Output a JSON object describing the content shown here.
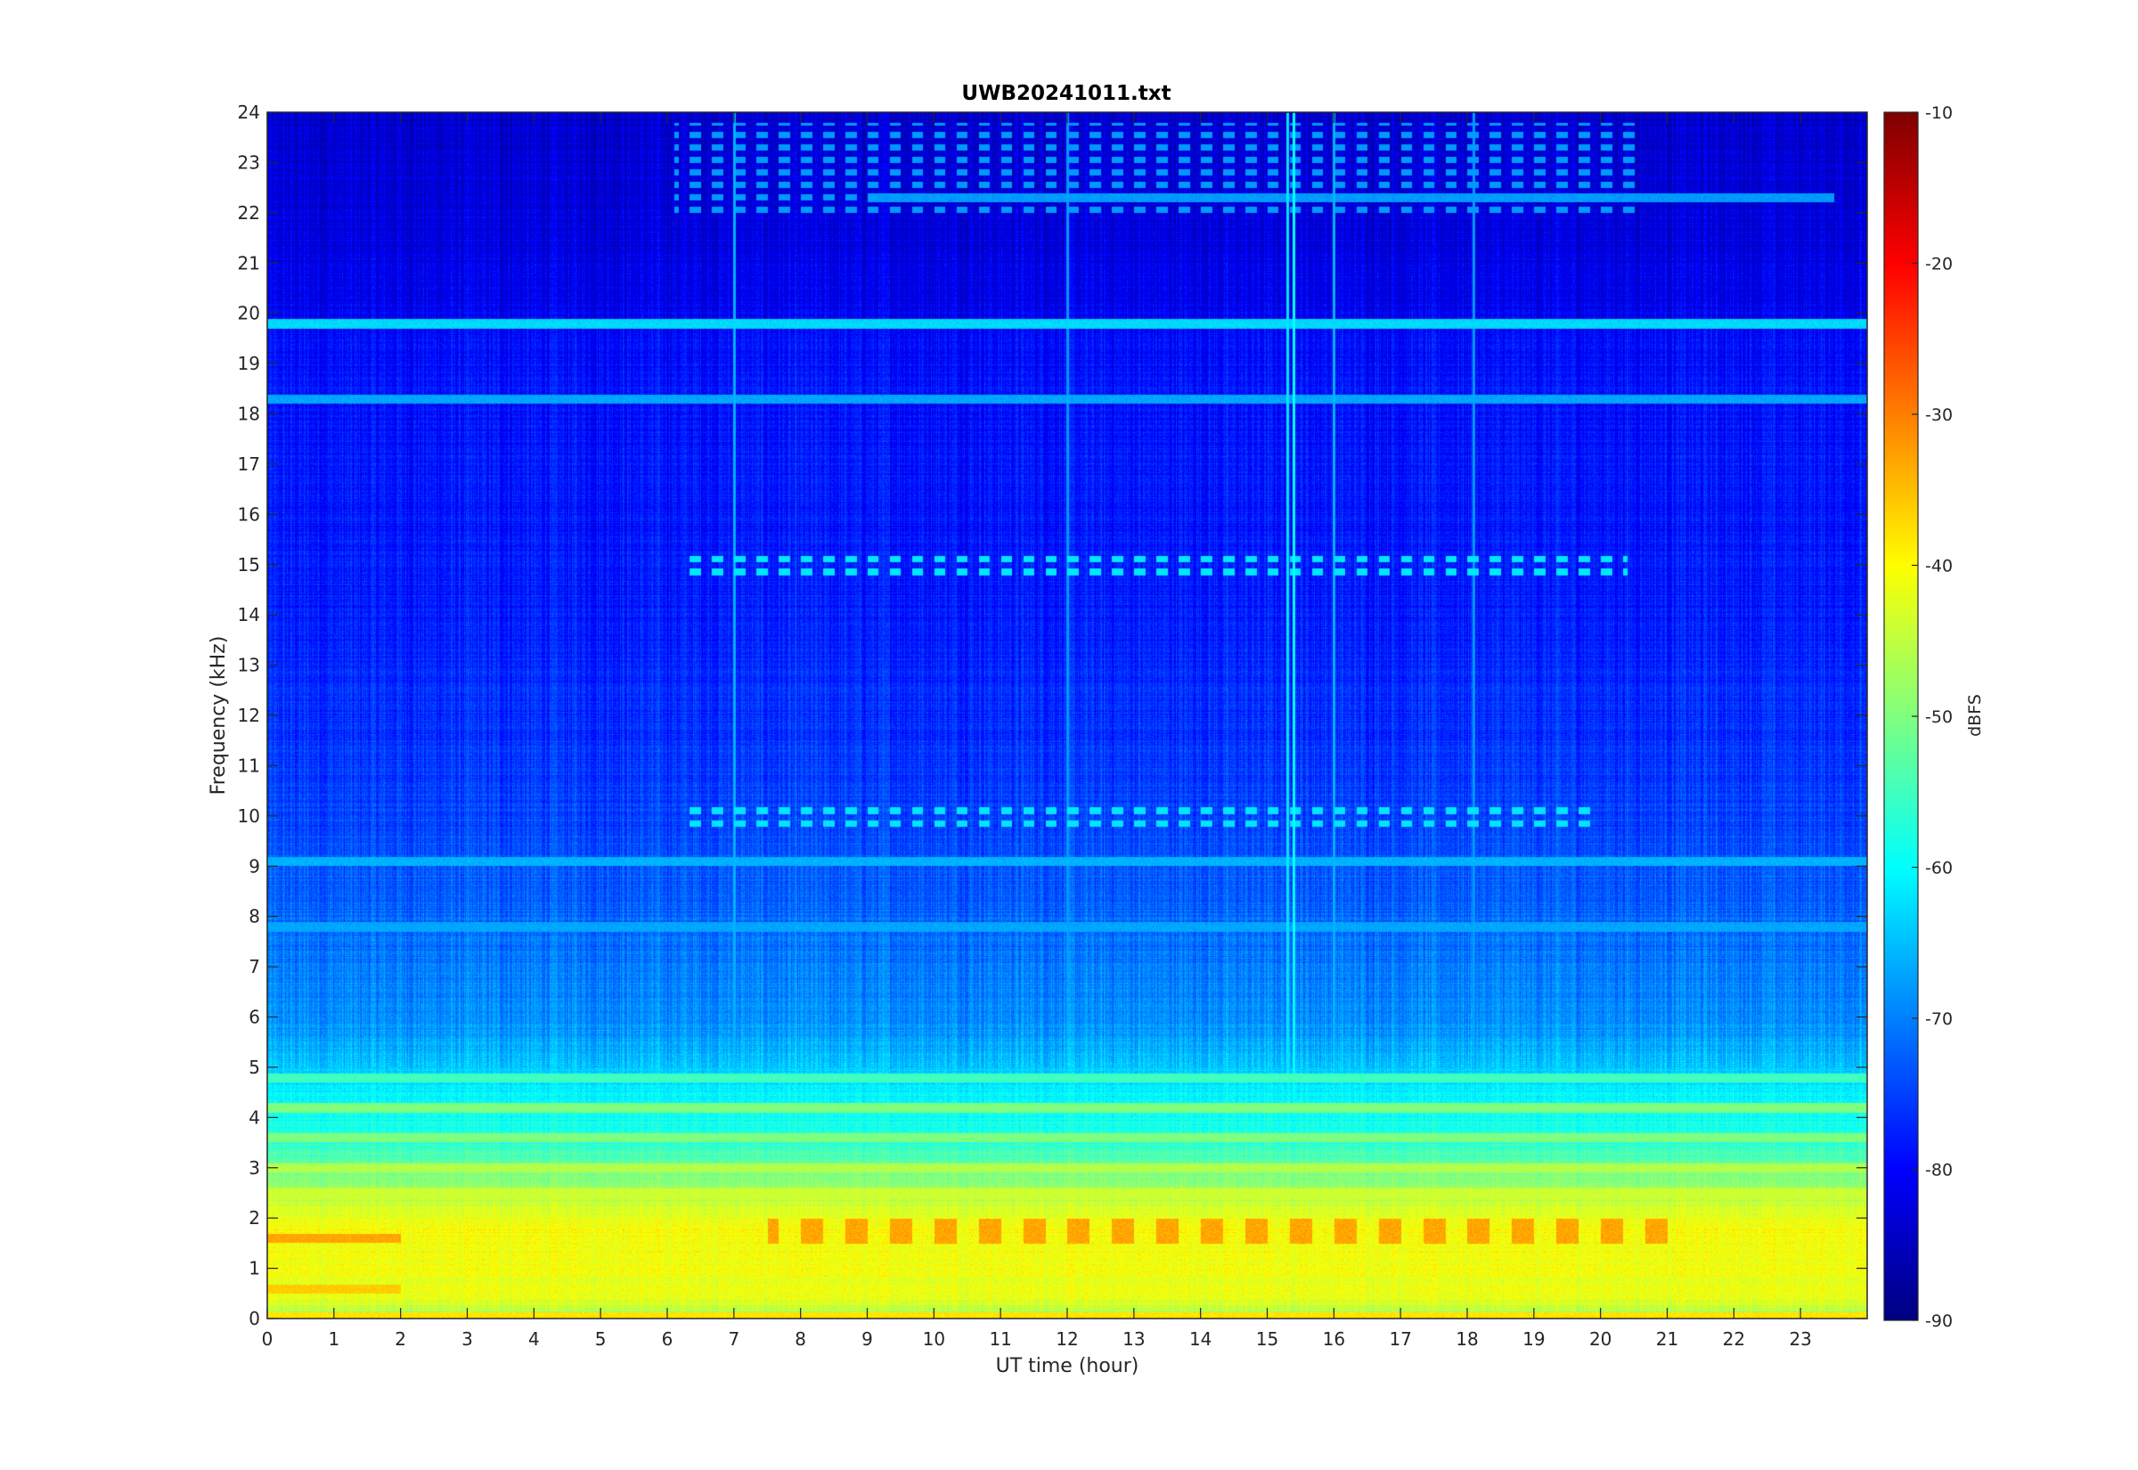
{
  "chart_data": {
    "type": "heatmap",
    "title": "UWB20241011.txt",
    "xlabel": "UT time (hour)",
    "ylabel": "Frequency (kHz)",
    "colorbar_label": "dBFS",
    "xlim": [
      0,
      24
    ],
    "ylim": [
      0,
      24
    ],
    "clim": [
      -90,
      -10
    ],
    "colormap": "jet",
    "x_ticks": [
      "0",
      "1",
      "2",
      "3",
      "4",
      "5",
      "6",
      "7",
      "8",
      "9",
      "10",
      "11",
      "12",
      "13",
      "14",
      "15",
      "16",
      "17",
      "18",
      "19",
      "20",
      "21",
      "22",
      "23"
    ],
    "y_ticks": [
      "0",
      "1",
      "2",
      "3",
      "4",
      "5",
      "6",
      "7",
      "8",
      "9",
      "10",
      "11",
      "12",
      "13",
      "14",
      "15",
      "16",
      "17",
      "18",
      "19",
      "20",
      "21",
      "22",
      "23",
      "24"
    ],
    "colorbar_ticks": [
      "-90",
      "-80",
      "-70",
      "-60",
      "-50",
      "-40",
      "-30",
      "-20",
      "-10"
    ],
    "background_level_by_frequency": [
      {
        "freq": 0.0,
        "level": -48
      },
      {
        "freq": 0.4,
        "level": -42
      },
      {
        "freq": 1.0,
        "level": -41
      },
      {
        "freq": 1.8,
        "level": -40
      },
      {
        "freq": 2.5,
        "level": -46
      },
      {
        "freq": 3.0,
        "level": -52
      },
      {
        "freq": 3.6,
        "level": -57
      },
      {
        "freq": 4.3,
        "level": -60
      },
      {
        "freq": 5.0,
        "level": -64
      },
      {
        "freq": 6.0,
        "level": -69
      },
      {
        "freq": 8.0,
        "level": -72
      },
      {
        "freq": 10.0,
        "level": -75
      },
      {
        "freq": 14.0,
        "level": -78
      },
      {
        "freq": 19.0,
        "level": -79
      },
      {
        "freq": 21.0,
        "level": -82
      },
      {
        "freq": 24.0,
        "level": -84
      }
    ],
    "horizontal_lines": [
      {
        "freq": 19.8,
        "t_start": 0,
        "t_end": 24,
        "level": -63
      },
      {
        "freq": 18.3,
        "t_start": 0,
        "t_end": 24,
        "level": -67
      },
      {
        "freq": 22.3,
        "t_start": 9,
        "t_end": 23.5,
        "level": -68
      },
      {
        "freq": 4.2,
        "t_start": 0,
        "t_end": 24,
        "level": -50
      },
      {
        "freq": 4.8,
        "t_start": 0,
        "t_end": 24,
        "level": -55
      },
      {
        "freq": 3.6,
        "t_start": 0,
        "t_end": 24,
        "level": -50
      },
      {
        "freq": 3.0,
        "t_start": 0,
        "t_end": 24,
        "level": -46
      },
      {
        "freq": 2.5,
        "t_start": 0,
        "t_end": 24,
        "level": -44
      },
      {
        "freq": 1.6,
        "t_start": 0,
        "t_end": 2,
        "level": -33
      },
      {
        "freq": 0.6,
        "t_start": 0,
        "t_end": 2,
        "level": -36
      },
      {
        "freq": 9.1,
        "t_start": 0,
        "t_end": 24,
        "level": -66
      },
      {
        "freq": 7.8,
        "t_start": 0,
        "t_end": 24,
        "level": -67
      },
      {
        "freq": 0.05,
        "t_start": 0,
        "t_end": 24,
        "level": -38
      }
    ],
    "dashed_bands": [
      {
        "freq_min": 14.8,
        "freq_max": 15.3,
        "t_start": 6.2,
        "t_end": 20.4,
        "level": -62
      },
      {
        "freq_min": 9.8,
        "freq_max": 10.2,
        "t_start": 6.2,
        "t_end": 20.0,
        "level": -62
      },
      {
        "freq_min": 22.0,
        "freq_max": 23.8,
        "t_start": 6.1,
        "t_end": 20.6,
        "level": -68
      }
    ],
    "hot_band": {
      "freq_min": 1.5,
      "freq_max": 2.0,
      "t_start": 7.5,
      "t_end": 21.2,
      "level": -33
    },
    "vertical_streaks": [
      {
        "t": 7.0,
        "level": -66
      },
      {
        "t": 12.0,
        "level": -68
      },
      {
        "t": 15.3,
        "level": -62
      },
      {
        "t": 15.4,
        "level": -60
      },
      {
        "t": 16.0,
        "level": -66
      },
      {
        "t": 18.1,
        "level": -68
      }
    ]
  }
}
